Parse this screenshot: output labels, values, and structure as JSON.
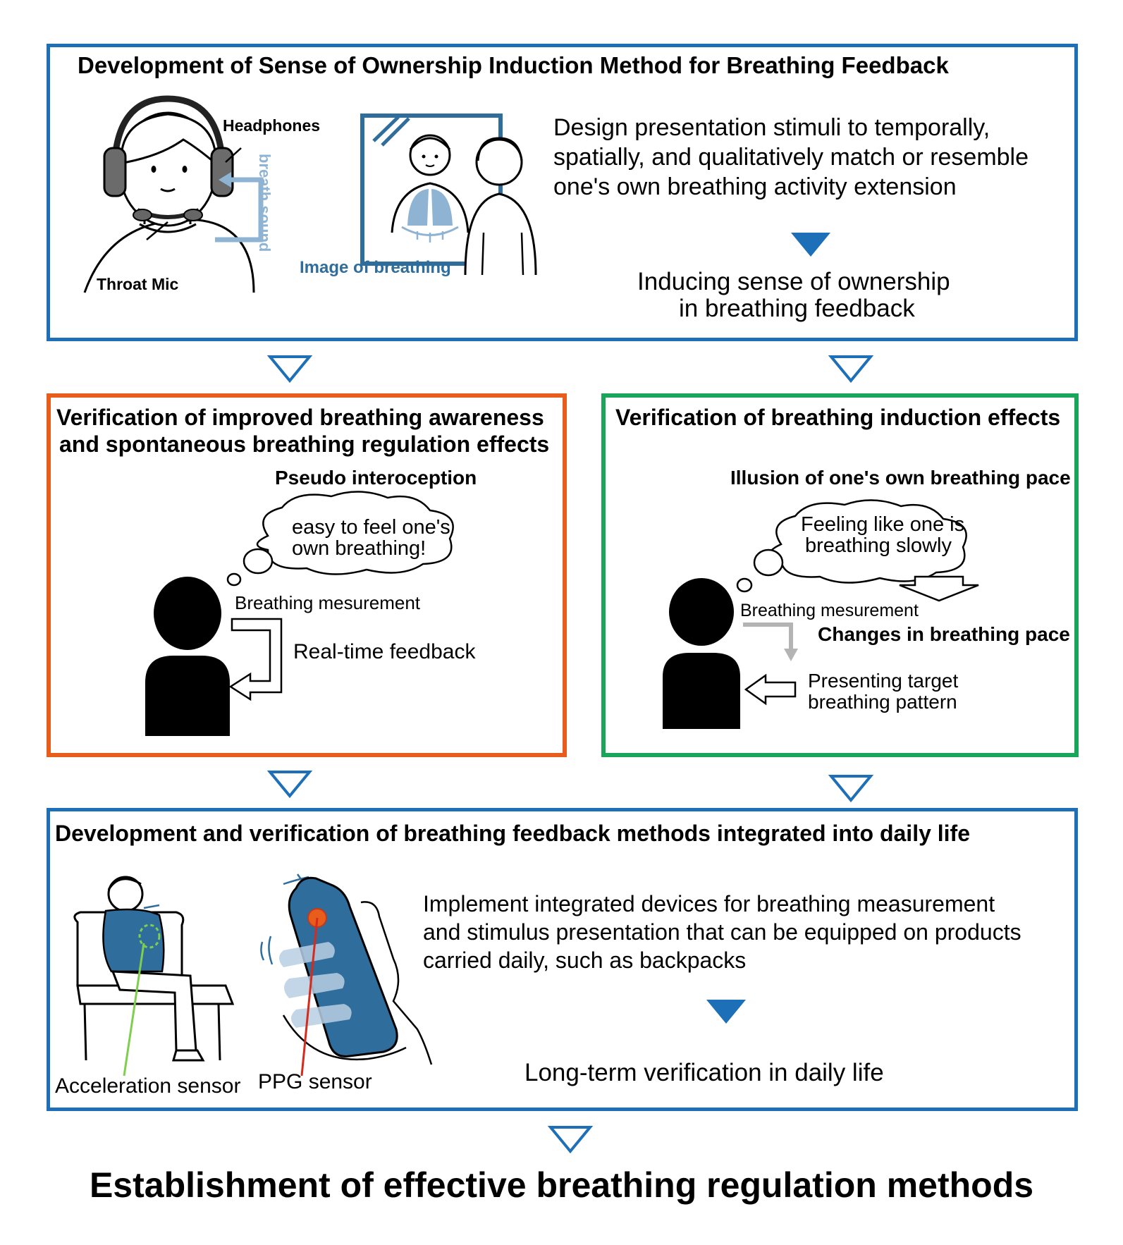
{
  "colors": {
    "blue": "#1d6fb8",
    "orange": "#e85c1c",
    "green": "#1aa65a",
    "steel": "#2e6d9c",
    "lightblue": "#8fb4d3",
    "gray": "#b4b4b4"
  },
  "section1": {
    "title": "Development of Sense of Ownership Induction Method for Breathing Feedback",
    "label_headphones": "Headphones",
    "label_breath_sound": "breath sound",
    "label_throat_mic": "Throat Mic",
    "label_image_of_breathing": "Image of breathing",
    "desc_line1": "Design presentation stimuli to temporally,",
    "desc_line2": "spatially, and qualitatively match or resemble",
    "desc_line3": "one's own breathing activity extension",
    "result_line1": "Inducing sense of ownership",
    "result_line2": "in breathing feedback"
  },
  "section2": {
    "title_line1": "Verification of improved breathing awareness",
    "title_line2": "and spontaneous breathing regulation effects",
    "subtitle": "Pseudo interoception",
    "bubble_line1": "easy to feel one's",
    "bubble_line2": "own breathing!",
    "label_measurement": "Breathing mesurement",
    "label_feedback": "Real-time feedback"
  },
  "section3": {
    "title": "Verification of breathing induction effects",
    "subtitle": "Illusion of one's own breathing pace",
    "bubble_line1": "Feeling like one is",
    "bubble_line2": "breathing slowly",
    "label_measurement": "Breathing mesurement",
    "label_changes": "Changes in breathing pace",
    "label_target_line1": "Presenting target",
    "label_target_line2": "breathing pattern"
  },
  "section4": {
    "title": "Development and verification of breathing feedback methods integrated into daily life",
    "desc_line1": "Implement integrated devices for breathing measurement",
    "desc_line2": "and stimulus presentation that can be equipped on products",
    "desc_line3": "carried daily, such as backpacks",
    "result": "Long-term verification in daily life",
    "label_accel": "Acceleration sensor",
    "label_ppg": "PPG sensor"
  },
  "final": {
    "conclusion": "Establishment of effective breathing regulation methods"
  }
}
